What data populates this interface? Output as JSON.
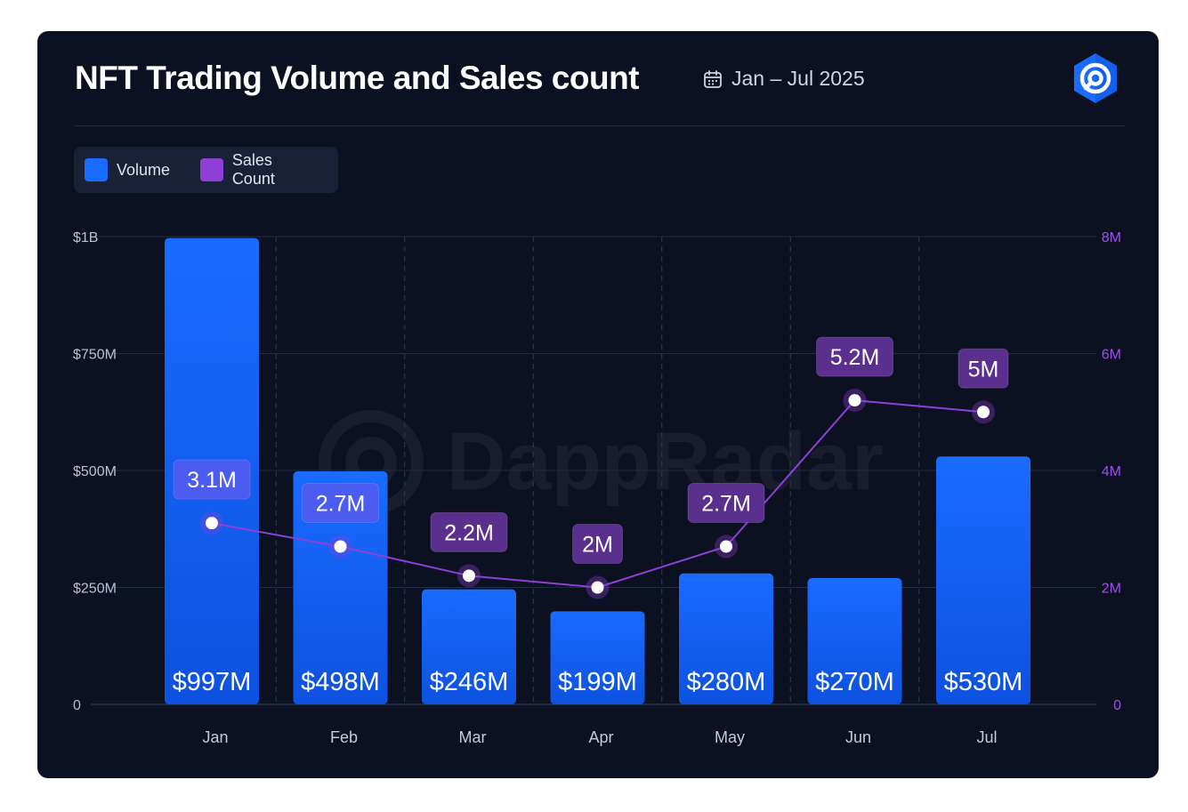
{
  "header": {
    "title": "NFT Trading Volume and Sales count",
    "date_range": "Jan – Jul 2025",
    "calendar_icon": "calendar-icon",
    "brand_icon": "dappradar-logo-icon"
  },
  "watermark": "DappRadar",
  "colors": {
    "volume": "#1a6bff",
    "sales_count": "#8e3fd6",
    "label_blue": "#4d5cf0",
    "label_purple": "#5a2f8e"
  },
  "legend": {
    "items": [
      {
        "label": "Volume",
        "color": "#1a6bff"
      },
      {
        "label": "Sales Count",
        "color": "#8e3fd6"
      }
    ]
  },
  "chart_data": {
    "type": "bar",
    "categories": [
      "Jan",
      "Feb",
      "Mar",
      "Apr",
      "May",
      "Jun",
      "Jul"
    ],
    "series": [
      {
        "name": "Volume",
        "type": "bar",
        "axis": "left",
        "values": [
          997,
          498,
          246,
          199,
          280,
          270,
          530
        ],
        "unit": "USD millions",
        "labels": [
          "$997M",
          "$498M",
          "$246M",
          "$199M",
          "$280M",
          "$270M",
          "$530M"
        ]
      },
      {
        "name": "Sales Count",
        "type": "line",
        "axis": "right",
        "values": [
          3.1,
          2.7,
          2.2,
          2.0,
          2.7,
          5.2,
          5.0
        ],
        "unit": "millions",
        "labels": [
          "3.1M",
          "2.7M",
          "2.2M",
          "2M",
          "2.7M",
          "5.2M",
          "5M"
        ]
      }
    ],
    "y_left": {
      "range": [
        0,
        1000
      ],
      "ticks": [
        0,
        250,
        500,
        750,
        1000
      ],
      "tick_labels": [
        "0",
        "$250M",
        "$500M",
        "$750M",
        "$1B"
      ]
    },
    "y_right": {
      "range": [
        0,
        8
      ],
      "ticks": [
        0,
        2,
        4,
        6,
        8
      ],
      "tick_labels": [
        "0",
        "2M",
        "4M",
        "6M",
        "8M"
      ]
    },
    "grid": {
      "horizontal": true,
      "vertical_dashed": true
    },
    "legend_position": "top-left"
  }
}
